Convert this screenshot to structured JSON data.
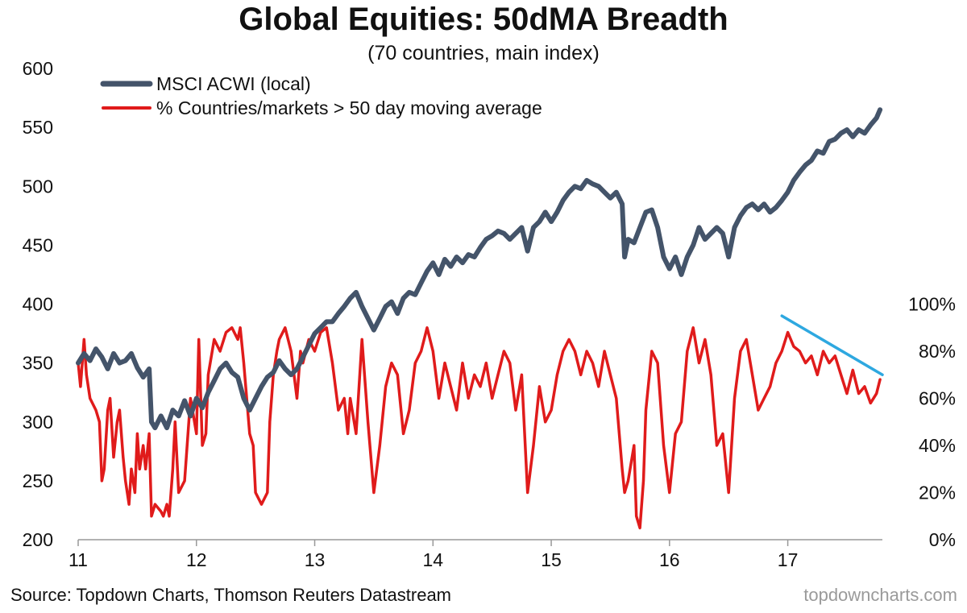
{
  "title": "Global Equities: 50dMA Breadth",
  "subtitle": "(70 countries, main index)",
  "source": "Source: Topdown Charts, Thomson Reuters Datastream",
  "brand": "topdowncharts.com",
  "chart_data": {
    "type": "line",
    "x_range": [
      11,
      17.8
    ],
    "x_ticks": [
      "11",
      "12",
      "13",
      "14",
      "15",
      "16",
      "17"
    ],
    "y_left": {
      "range": [
        200,
        600
      ],
      "ticks": [
        "200",
        "250",
        "300",
        "350",
        "400",
        "450",
        "500",
        "550",
        "600"
      ]
    },
    "y_right": {
      "range": [
        0,
        200
      ],
      "ticks": [
        "0%",
        "20%",
        "40%",
        "60%",
        "80%",
        "100%"
      ]
    },
    "series": [
      {
        "name": "MSCI ACWI (local)",
        "axis": "left",
        "color": "#44546a",
        "points": [
          [
            11.0,
            350
          ],
          [
            11.05,
            358
          ],
          [
            11.1,
            352
          ],
          [
            11.15,
            362
          ],
          [
            11.2,
            355
          ],
          [
            11.25,
            345
          ],
          [
            11.3,
            358
          ],
          [
            11.35,
            350
          ],
          [
            11.4,
            352
          ],
          [
            11.45,
            358
          ],
          [
            11.5,
            346
          ],
          [
            11.55,
            338
          ],
          [
            11.6,
            345
          ],
          [
            11.62,
            300
          ],
          [
            11.65,
            295
          ],
          [
            11.7,
            305
          ],
          [
            11.75,
            295
          ],
          [
            11.8,
            310
          ],
          [
            11.85,
            305
          ],
          [
            11.9,
            318
          ],
          [
            11.95,
            305
          ],
          [
            12.0,
            320
          ],
          [
            12.05,
            312
          ],
          [
            12.1,
            325
          ],
          [
            12.15,
            335
          ],
          [
            12.2,
            345
          ],
          [
            12.25,
            350
          ],
          [
            12.3,
            342
          ],
          [
            12.35,
            338
          ],
          [
            12.4,
            320
          ],
          [
            12.45,
            310
          ],
          [
            12.5,
            320
          ],
          [
            12.55,
            330
          ],
          [
            12.6,
            338
          ],
          [
            12.65,
            342
          ],
          [
            12.7,
            352
          ],
          [
            12.75,
            345
          ],
          [
            12.8,
            340
          ],
          [
            12.85,
            345
          ],
          [
            12.9,
            355
          ],
          [
            12.95,
            365
          ],
          [
            13.0,
            375
          ],
          [
            13.05,
            380
          ],
          [
            13.1,
            385
          ],
          [
            13.15,
            385
          ],
          [
            13.2,
            392
          ],
          [
            13.25,
            398
          ],
          [
            13.3,
            405
          ],
          [
            13.35,
            410
          ],
          [
            13.4,
            398
          ],
          [
            13.45,
            388
          ],
          [
            13.5,
            378
          ],
          [
            13.55,
            388
          ],
          [
            13.6,
            398
          ],
          [
            13.65,
            402
          ],
          [
            13.7,
            392
          ],
          [
            13.75,
            405
          ],
          [
            13.8,
            410
          ],
          [
            13.85,
            408
          ],
          [
            13.9,
            418
          ],
          [
            13.95,
            428
          ],
          [
            14.0,
            435
          ],
          [
            14.05,
            425
          ],
          [
            14.1,
            438
          ],
          [
            14.15,
            432
          ],
          [
            14.2,
            440
          ],
          [
            14.25,
            435
          ],
          [
            14.3,
            442
          ],
          [
            14.35,
            440
          ],
          [
            14.4,
            448
          ],
          [
            14.45,
            455
          ],
          [
            14.5,
            458
          ],
          [
            14.55,
            462
          ],
          [
            14.6,
            460
          ],
          [
            14.65,
            455
          ],
          [
            14.7,
            460
          ],
          [
            14.75,
            465
          ],
          [
            14.8,
            445
          ],
          [
            14.85,
            465
          ],
          [
            14.9,
            470
          ],
          [
            14.95,
            478
          ],
          [
            15.0,
            470
          ],
          [
            15.05,
            478
          ],
          [
            15.1,
            488
          ],
          [
            15.15,
            495
          ],
          [
            15.2,
            500
          ],
          [
            15.25,
            498
          ],
          [
            15.3,
            505
          ],
          [
            15.35,
            502
          ],
          [
            15.4,
            500
          ],
          [
            15.45,
            495
          ],
          [
            15.5,
            490
          ],
          [
            15.55,
            495
          ],
          [
            15.6,
            485
          ],
          [
            15.62,
            440
          ],
          [
            15.65,
            455
          ],
          [
            15.7,
            452
          ],
          [
            15.75,
            465
          ],
          [
            15.8,
            478
          ],
          [
            15.85,
            480
          ],
          [
            15.9,
            465
          ],
          [
            15.95,
            440
          ],
          [
            16.0,
            430
          ],
          [
            16.05,
            440
          ],
          [
            16.1,
            425
          ],
          [
            16.15,
            440
          ],
          [
            16.2,
            450
          ],
          [
            16.25,
            465
          ],
          [
            16.3,
            455
          ],
          [
            16.35,
            460
          ],
          [
            16.4,
            465
          ],
          [
            16.45,
            460
          ],
          [
            16.5,
            440
          ],
          [
            16.55,
            465
          ],
          [
            16.6,
            475
          ],
          [
            16.65,
            482
          ],
          [
            16.7,
            485
          ],
          [
            16.75,
            480
          ],
          [
            16.8,
            485
          ],
          [
            16.85,
            478
          ],
          [
            16.9,
            482
          ],
          [
            16.95,
            488
          ],
          [
            17.0,
            495
          ],
          [
            17.05,
            505
          ],
          [
            17.1,
            512
          ],
          [
            17.15,
            518
          ],
          [
            17.2,
            522
          ],
          [
            17.25,
            530
          ],
          [
            17.3,
            528
          ],
          [
            17.35,
            538
          ],
          [
            17.4,
            540
          ],
          [
            17.45,
            545
          ],
          [
            17.5,
            548
          ],
          [
            17.55,
            542
          ],
          [
            17.6,
            548
          ],
          [
            17.65,
            545
          ],
          [
            17.7,
            552
          ],
          [
            17.75,
            558
          ],
          [
            17.78,
            565
          ]
        ]
      },
      {
        "name": "% Countries/markets > 50 day moving average",
        "axis": "right",
        "color": "#e01b1b",
        "points": [
          [
            11.0,
            75
          ],
          [
            11.02,
            65
          ],
          [
            11.05,
            85
          ],
          [
            11.07,
            70
          ],
          [
            11.1,
            60
          ],
          [
            11.15,
            55
          ],
          [
            11.18,
            50
          ],
          [
            11.2,
            25
          ],
          [
            11.22,
            30
          ],
          [
            11.25,
            55
          ],
          [
            11.27,
            60
          ],
          [
            11.3,
            35
          ],
          [
            11.33,
            50
          ],
          [
            11.35,
            55
          ],
          [
            11.38,
            35
          ],
          [
            11.4,
            25
          ],
          [
            11.43,
            15
          ],
          [
            11.45,
            30
          ],
          [
            11.48,
            20
          ],
          [
            11.5,
            45
          ],
          [
            11.52,
            30
          ],
          [
            11.55,
            40
          ],
          [
            11.57,
            30
          ],
          [
            11.6,
            45
          ],
          [
            11.62,
            10
          ],
          [
            11.65,
            15
          ],
          [
            11.7,
            12
          ],
          [
            11.72,
            10
          ],
          [
            11.75,
            15
          ],
          [
            11.77,
            10
          ],
          [
            11.8,
            30
          ],
          [
            11.82,
            50
          ],
          [
            11.85,
            20
          ],
          [
            11.9,
            25
          ],
          [
            11.95,
            60
          ],
          [
            12.0,
            45
          ],
          [
            12.02,
            85
          ],
          [
            12.05,
            40
          ],
          [
            12.08,
            45
          ],
          [
            12.1,
            70
          ],
          [
            12.15,
            85
          ],
          [
            12.2,
            80
          ],
          [
            12.25,
            88
          ],
          [
            12.3,
            90
          ],
          [
            12.35,
            85
          ],
          [
            12.37,
            90
          ],
          [
            12.4,
            75
          ],
          [
            12.45,
            45
          ],
          [
            12.48,
            40
          ],
          [
            12.5,
            20
          ],
          [
            12.55,
            15
          ],
          [
            12.6,
            20
          ],
          [
            12.62,
            50
          ],
          [
            12.65,
            70
          ],
          [
            12.68,
            80
          ],
          [
            12.7,
            85
          ],
          [
            12.75,
            90
          ],
          [
            12.8,
            80
          ],
          [
            12.85,
            60
          ],
          [
            12.88,
            80
          ],
          [
            12.9,
            75
          ],
          [
            12.95,
            85
          ],
          [
            13.0,
            80
          ],
          [
            13.05,
            88
          ],
          [
            13.1,
            90
          ],
          [
            13.15,
            75
          ],
          [
            13.2,
            55
          ],
          [
            13.25,
            60
          ],
          [
            13.28,
            45
          ],
          [
            13.3,
            60
          ],
          [
            13.35,
            45
          ],
          [
            13.4,
            85
          ],
          [
            13.45,
            50
          ],
          [
            13.5,
            20
          ],
          [
            13.55,
            40
          ],
          [
            13.6,
            65
          ],
          [
            13.65,
            75
          ],
          [
            13.7,
            70
          ],
          [
            13.75,
            45
          ],
          [
            13.8,
            55
          ],
          [
            13.85,
            75
          ],
          [
            13.9,
            80
          ],
          [
            13.95,
            90
          ],
          [
            14.0,
            80
          ],
          [
            14.05,
            60
          ],
          [
            14.1,
            75
          ],
          [
            14.15,
            65
          ],
          [
            14.2,
            55
          ],
          [
            14.25,
            75
          ],
          [
            14.3,
            60
          ],
          [
            14.35,
            70
          ],
          [
            14.4,
            65
          ],
          [
            14.45,
            75
          ],
          [
            14.5,
            60
          ],
          [
            14.55,
            70
          ],
          [
            14.6,
            80
          ],
          [
            14.65,
            75
          ],
          [
            14.7,
            55
          ],
          [
            14.75,
            70
          ],
          [
            14.8,
            20
          ],
          [
            14.85,
            40
          ],
          [
            14.9,
            65
          ],
          [
            14.95,
            50
          ],
          [
            15.0,
            55
          ],
          [
            15.05,
            70
          ],
          [
            15.1,
            80
          ],
          [
            15.15,
            85
          ],
          [
            15.2,
            80
          ],
          [
            15.25,
            70
          ],
          [
            15.3,
            80
          ],
          [
            15.35,
            75
          ],
          [
            15.4,
            65
          ],
          [
            15.45,
            80
          ],
          [
            15.5,
            70
          ],
          [
            15.55,
            60
          ],
          [
            15.6,
            30
          ],
          [
            15.62,
            20
          ],
          [
            15.65,
            25
          ],
          [
            15.7,
            40
          ],
          [
            15.72,
            10
          ],
          [
            15.75,
            5
          ],
          [
            15.78,
            25
          ],
          [
            15.8,
            55
          ],
          [
            15.85,
            80
          ],
          [
            15.9,
            75
          ],
          [
            15.95,
            40
          ],
          [
            16.0,
            20
          ],
          [
            16.05,
            45
          ],
          [
            16.1,
            50
          ],
          [
            16.15,
            80
          ],
          [
            16.2,
            90
          ],
          [
            16.25,
            75
          ],
          [
            16.3,
            85
          ],
          [
            16.35,
            70
          ],
          [
            16.4,
            40
          ],
          [
            16.45,
            45
          ],
          [
            16.5,
            20
          ],
          [
            16.55,
            60
          ],
          [
            16.6,
            80
          ],
          [
            16.65,
            85
          ],
          [
            16.7,
            70
          ],
          [
            16.75,
            55
          ],
          [
            16.8,
            60
          ],
          [
            16.85,
            65
          ],
          [
            16.9,
            75
          ],
          [
            16.95,
            80
          ],
          [
            17.0,
            88
          ],
          [
            17.05,
            82
          ],
          [
            17.1,
            80
          ],
          [
            17.15,
            75
          ],
          [
            17.2,
            78
          ],
          [
            17.25,
            70
          ],
          [
            17.3,
            80
          ],
          [
            17.35,
            75
          ],
          [
            17.4,
            78
          ],
          [
            17.45,
            70
          ],
          [
            17.5,
            62
          ],
          [
            17.55,
            72
          ],
          [
            17.6,
            62
          ],
          [
            17.65,
            65
          ],
          [
            17.7,
            58
          ],
          [
            17.75,
            62
          ],
          [
            17.78,
            68
          ]
        ]
      }
    ],
    "trendline": {
      "axis": "right",
      "color": "#2ea8e0",
      "start": [
        16.95,
        95
      ],
      "end": [
        17.8,
        70
      ]
    }
  }
}
